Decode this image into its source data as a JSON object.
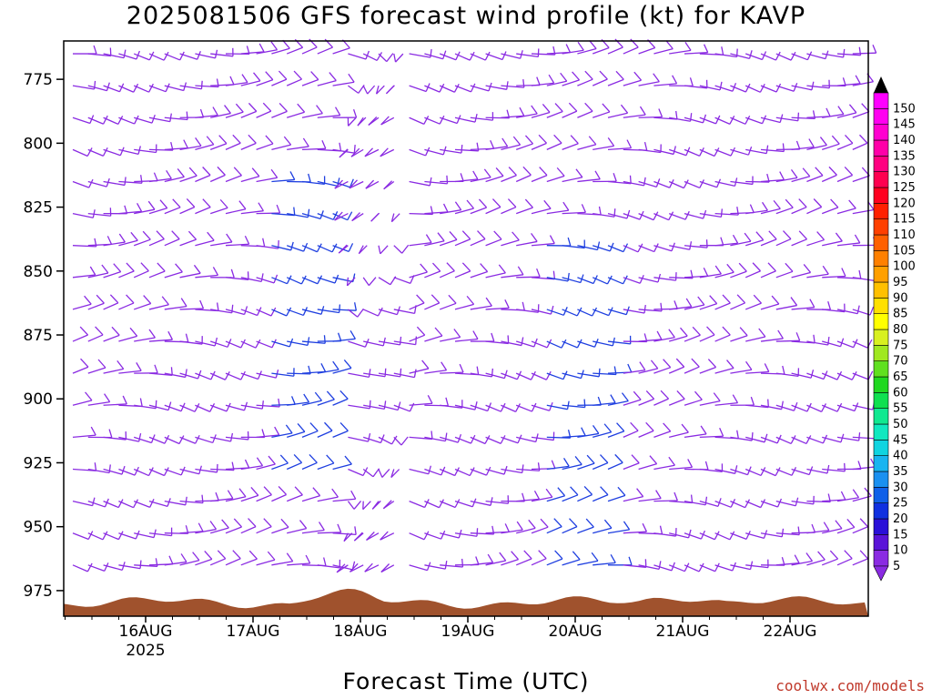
{
  "title": "2025081506 GFS forecast wind profile (kt) for KAVP",
  "xlabel": "Forecast Time (UTC)",
  "credit": "coolwx.com/models",
  "chart_data": {
    "type": "wind_barbs",
    "station": "KAVP",
    "units": "kt",
    "y_axis": {
      "label": "",
      "ticks": [
        775,
        800,
        825,
        850,
        875,
        900,
        925,
        950,
        975
      ],
      "range": [
        760,
        985
      ],
      "inverted": true
    },
    "x_axis": {
      "ticks": [
        "16AUG",
        "17AUG",
        "18AUG",
        "19AUG",
        "20AUG",
        "21AUG",
        "22AUG"
      ],
      "year_label": "2025"
    },
    "colorbar": {
      "labels": [
        5,
        10,
        15,
        20,
        25,
        30,
        35,
        40,
        45,
        50,
        55,
        60,
        65,
        70,
        75,
        80,
        85,
        90,
        95,
        100,
        105,
        110,
        115,
        120,
        125,
        130,
        135,
        140,
        145,
        150
      ],
      "colors": [
        "#8a2be2",
        "#5a14d8",
        "#2a10d8",
        "#1030e0",
        "#1060e8",
        "#1a90f0",
        "#18b4f0",
        "#10d4e0",
        "#10e8c0",
        "#10e890",
        "#10e050",
        "#20d820",
        "#60e020",
        "#a0e820",
        "#d8f020",
        "#ffff00",
        "#ffe000",
        "#ffc000",
        "#ffa000",
        "#ff8000",
        "#ff6000",
        "#ff4000",
        "#ff2000",
        "#ff0020",
        "#ff0050",
        "#ff0080",
        "#ff00a8",
        "#ff00d0",
        "#ff00f0",
        "#ff00ff"
      ]
    },
    "terrain_color": "#a0522d",
    "barb_color": "#8a2be2"
  }
}
